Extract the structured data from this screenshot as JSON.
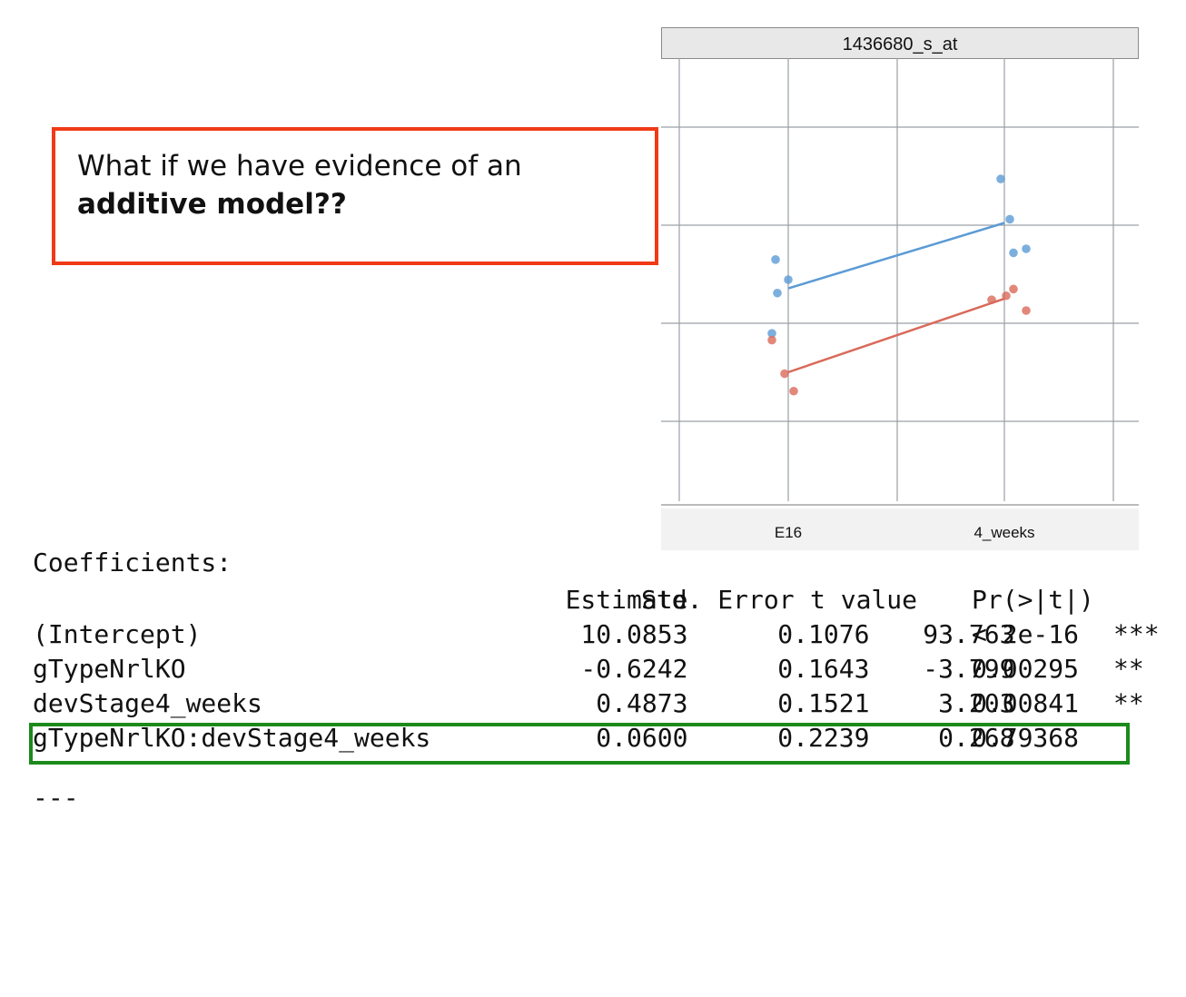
{
  "callout": {
    "line1": "What if we have evidence of an",
    "line2": "additive model??"
  },
  "chart_data": {
    "type": "scatter",
    "title": "1436680_s_at",
    "categories": [
      "E16",
      "4_weeks"
    ],
    "colors": {
      "series_a": "#5b9bd5",
      "series_b": "#d96a5a"
    },
    "series": [
      {
        "color": "#5b9bd5",
        "points": [
          {
            "cat": "E16",
            "y": 10.3
          },
          {
            "cat": "E16",
            "y": 10.05
          },
          {
            "cat": "E16",
            "y": 10.15
          },
          {
            "cat": "E16",
            "y": 9.75
          },
          {
            "cat": "4_weeks",
            "y": 10.9
          },
          {
            "cat": "4_weeks",
            "y": 10.6
          },
          {
            "cat": "4_weeks",
            "y": 10.35
          },
          {
            "cat": "4_weeks",
            "y": 10.38
          }
        ],
        "fit": [
          10.0853,
          10.5726
        ]
      },
      {
        "color": "#d96a5a",
        "points": [
          {
            "cat": "E16",
            "y": 9.7
          },
          {
            "cat": "E16",
            "y": 9.45
          },
          {
            "cat": "E16",
            "y": 9.32
          },
          {
            "cat": "4_weeks",
            "y": 10.08
          },
          {
            "cat": "4_weeks",
            "y": 9.92
          },
          {
            "cat": "4_weeks",
            "y": 10.03
          },
          {
            "cat": "4_weeks",
            "y": 10.0
          }
        ],
        "fit": [
          9.4611,
          10.0084
        ]
      }
    ],
    "ylim": [
      8.5,
      11.8
    ],
    "grid": true
  },
  "coefficients": {
    "title": "Coefficients:",
    "headers": [
      "Estimate",
      "Std. Error",
      "t value",
      "Pr(>|t|)"
    ],
    "rows": [
      {
        "name": "(Intercept)",
        "estimate": "10.0853",
        "std_error": "0.1076",
        "t_value": "93.763",
        "p_value": "< 2e-16",
        "signif": "***"
      },
      {
        "name": "gTypeNrlKO",
        "estimate": "-0.6242",
        "std_error": "0.1643",
        "t_value": "-3.799",
        "p_value": "0.00295",
        "signif": "**"
      },
      {
        "name": "devStage4_weeks",
        "estimate": "0.4873",
        "std_error": "0.1521",
        "t_value": "3.203",
        "p_value": "0.00841",
        "signif": "**"
      },
      {
        "name": "gTypeNrlKO:devStage4_weeks",
        "estimate": "0.0600",
        "std_error": "0.2239",
        "t_value": "0.268",
        "p_value": "0.79368",
        "signif": ""
      }
    ],
    "ellipsis": "---",
    "highlight_color": "#1b8a1b"
  },
  "callout_border_color": "#f03a17"
}
